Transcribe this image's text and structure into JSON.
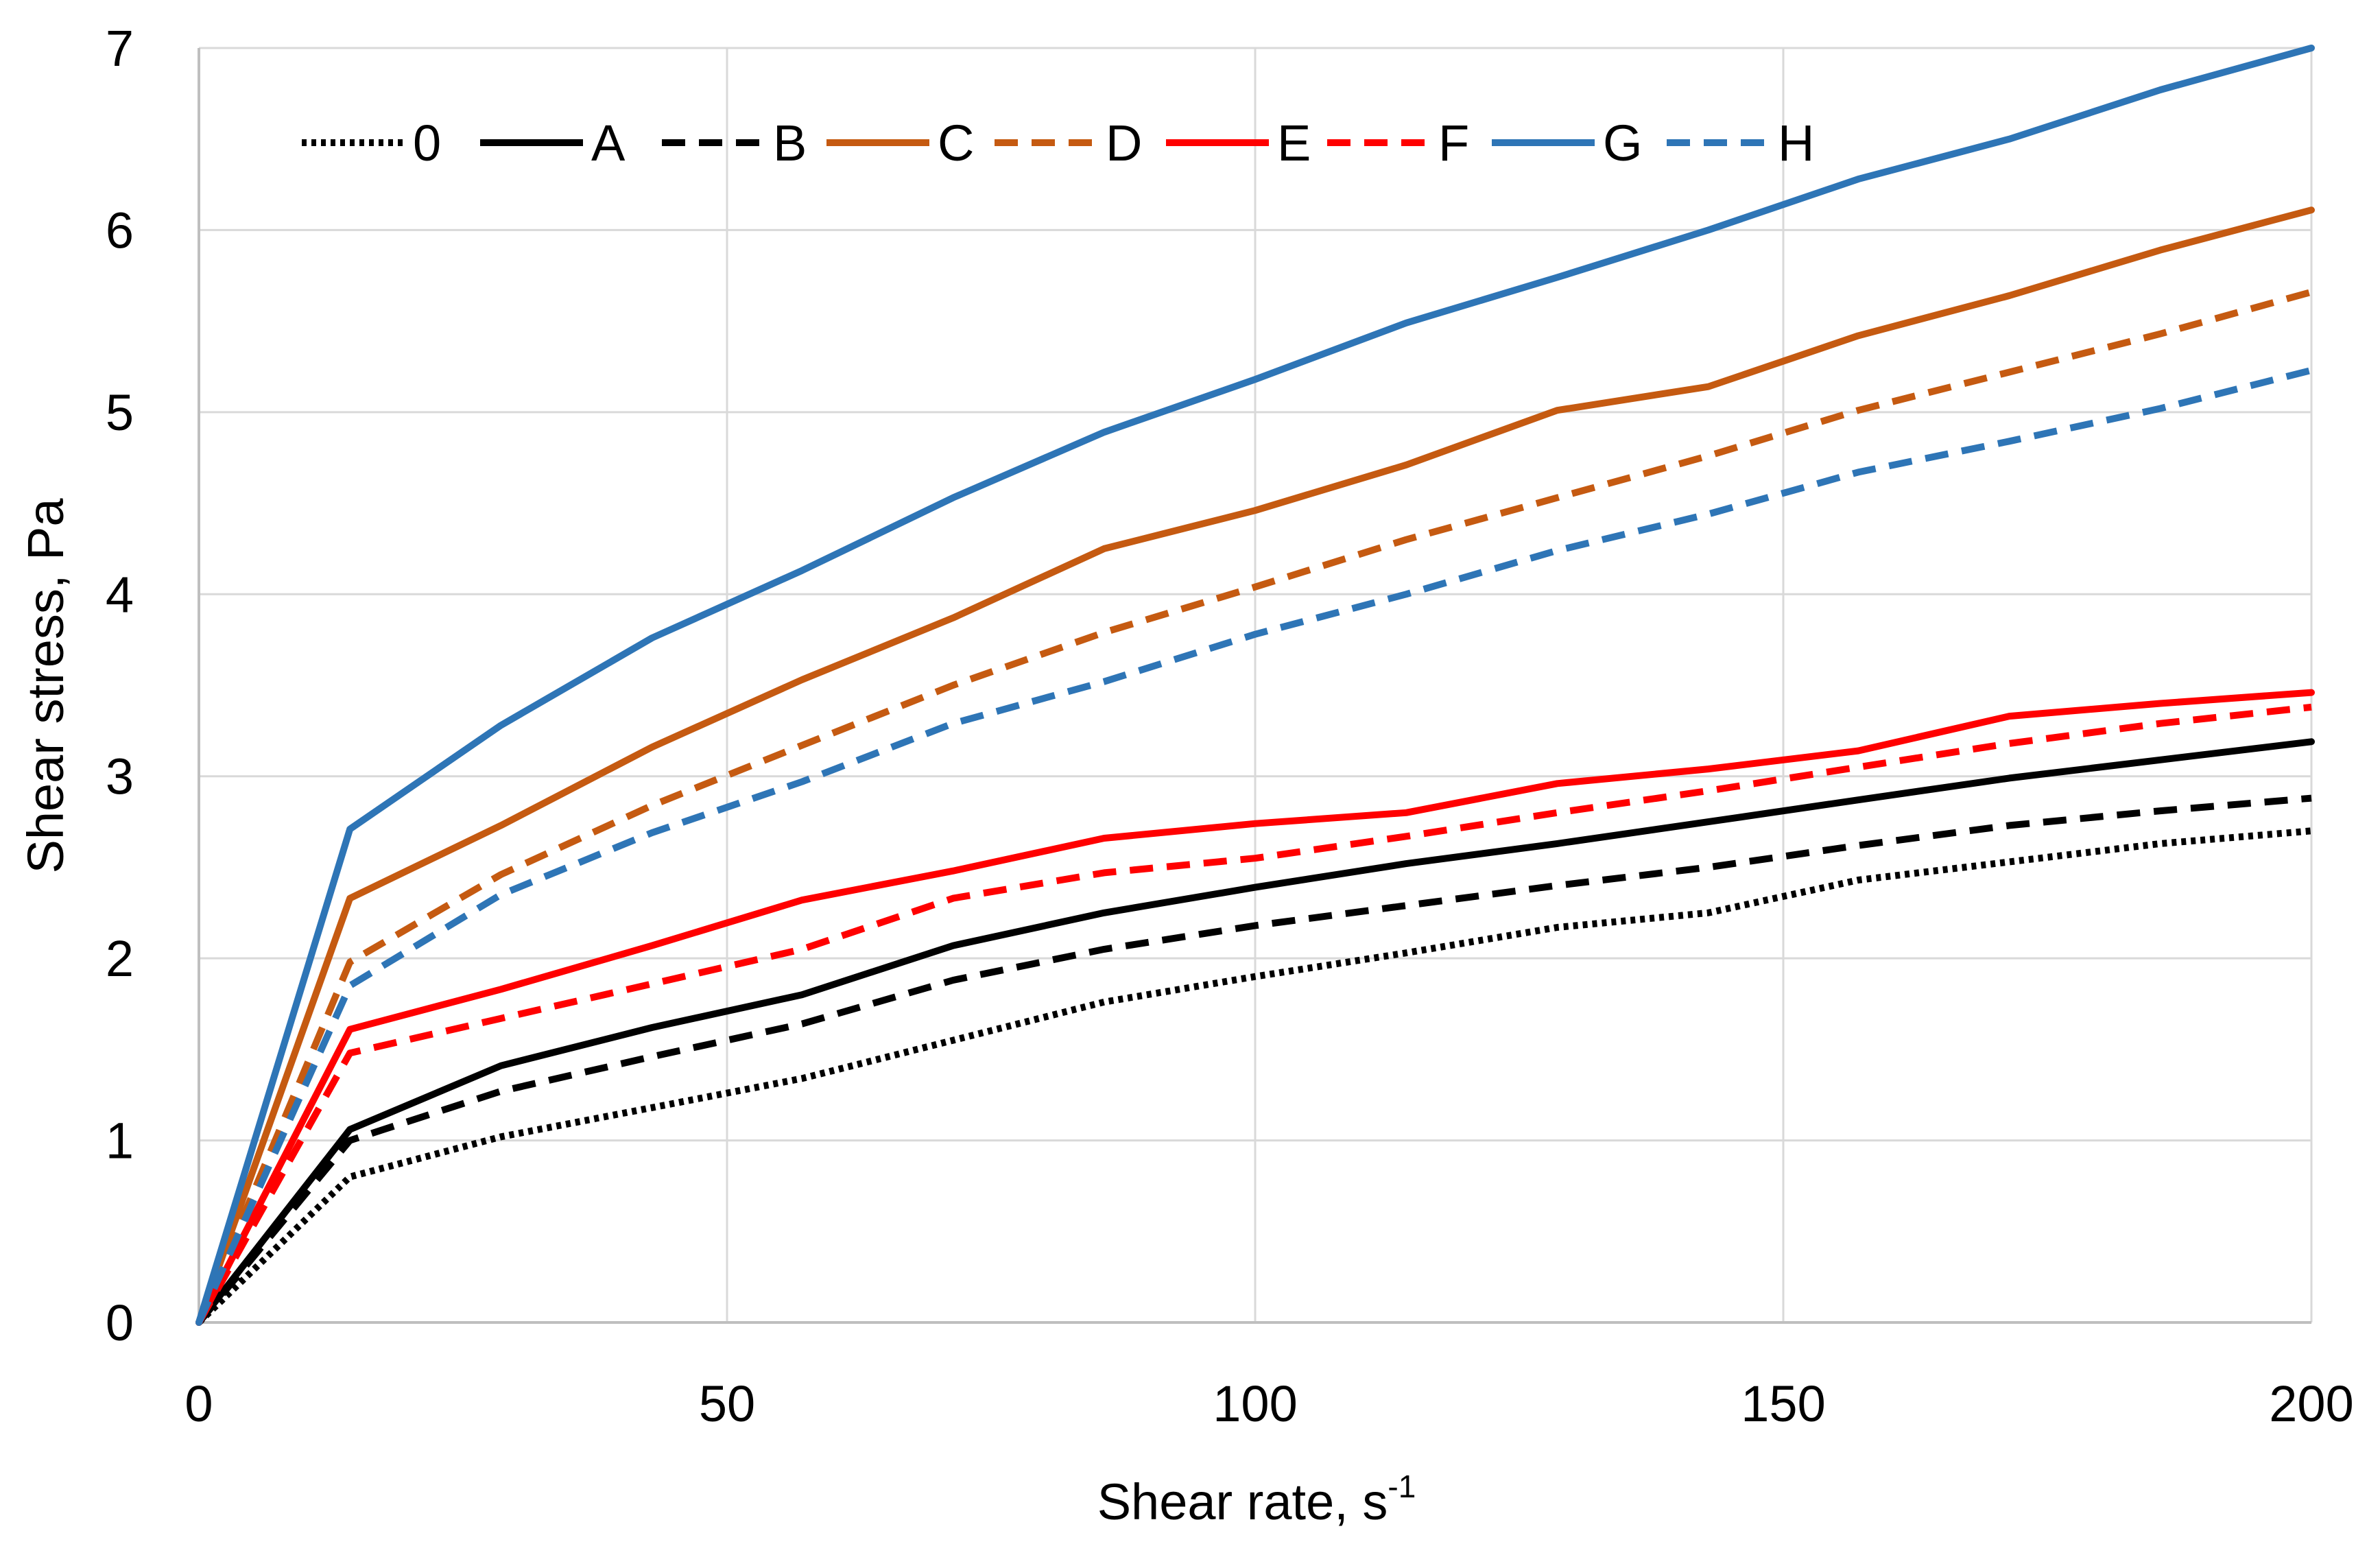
{
  "chart_data": {
    "type": "line",
    "title": "",
    "xlabel": "Shear rate, s",
    "xlabel_sup": "-1",
    "ylabel": "Shear stress, Pa",
    "xlim": [
      0,
      200
    ],
    "ylim": [
      0,
      7
    ],
    "xticks": [
      0,
      50,
      100,
      150,
      200
    ],
    "yticks": [
      0,
      1,
      2,
      3,
      4,
      5,
      6,
      7
    ],
    "grid": true,
    "legend_position": "top-left",
    "x": [
      0,
      14.3,
      28.6,
      42.9,
      57.1,
      71.4,
      85.7,
      100,
      114.3,
      128.6,
      142.9,
      157.1,
      171.4,
      185.7,
      200
    ],
    "series": [
      {
        "name": "0",
        "style": "dotted",
        "color": "#000000",
        "values": [
          0,
          0.8,
          1.02,
          1.18,
          1.34,
          1.55,
          1.76,
          1.9,
          2.03,
          2.17,
          2.25,
          2.43,
          2.53,
          2.63,
          2.7
        ]
      },
      {
        "name": "A",
        "style": "solid",
        "color": "#000000",
        "values": [
          0,
          1.06,
          1.41,
          1.62,
          1.8,
          2.07,
          2.25,
          2.39,
          2.52,
          2.63,
          2.75,
          2.87,
          2.99,
          3.09,
          3.19
        ]
      },
      {
        "name": "B",
        "style": "dashed",
        "color": "#000000",
        "values": [
          0,
          1.0,
          1.27,
          1.46,
          1.64,
          1.88,
          2.05,
          2.18,
          2.29,
          2.4,
          2.5,
          2.62,
          2.73,
          2.81,
          2.88
        ]
      },
      {
        "name": "C",
        "style": "solid",
        "color": "#c55a11",
        "values": [
          0,
          2.33,
          2.73,
          3.16,
          3.53,
          3.87,
          4.25,
          4.46,
          4.71,
          5.01,
          5.14,
          5.42,
          5.64,
          5.89,
          6.11
        ]
      },
      {
        "name": "D",
        "style": "dashed",
        "color": "#c55a11",
        "values": [
          0,
          1.98,
          2.46,
          2.84,
          3.17,
          3.5,
          3.79,
          4.04,
          4.3,
          4.53,
          4.76,
          5.01,
          5.22,
          5.43,
          5.66
        ]
      },
      {
        "name": "E",
        "style": "solid",
        "color": "#ff0000",
        "values": [
          0,
          1.61,
          1.83,
          2.07,
          2.32,
          2.48,
          2.66,
          2.74,
          2.8,
          2.96,
          3.04,
          3.14,
          3.33,
          3.4,
          3.46
        ]
      },
      {
        "name": "F",
        "style": "dashed",
        "color": "#ff0000",
        "values": [
          0,
          1.48,
          1.67,
          1.86,
          2.05,
          2.33,
          2.47,
          2.55,
          2.67,
          2.8,
          2.92,
          3.05,
          3.18,
          3.29,
          3.38
        ]
      },
      {
        "name": "G",
        "style": "solid",
        "color": "#2e75b6",
        "values": [
          0,
          2.71,
          3.28,
          3.76,
          4.13,
          4.53,
          4.89,
          5.18,
          5.49,
          5.74,
          6.0,
          6.28,
          6.5,
          6.77,
          7.0
        ]
      },
      {
        "name": "H",
        "style": "dashed",
        "color": "#2e75b6",
        "values": [
          0,
          1.85,
          2.35,
          2.69,
          2.97,
          3.29,
          3.52,
          3.78,
          4.0,
          4.24,
          4.44,
          4.67,
          4.84,
          5.02,
          5.23
        ]
      }
    ]
  }
}
